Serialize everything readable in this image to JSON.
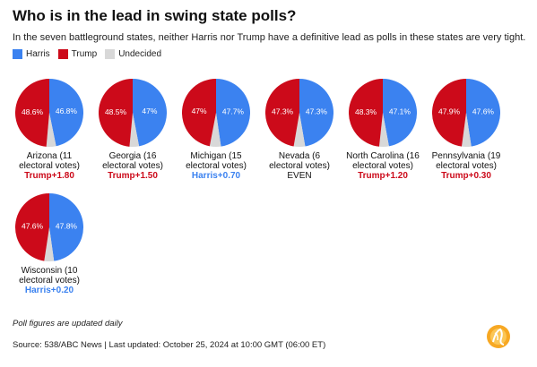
{
  "title": "Who is in the lead in swing state polls?",
  "subtitle": "In the seven battleground states, neither Harris nor Trump have a definitive lead as polls in these states are very tight.",
  "legend": [
    {
      "label": "Harris",
      "color": "#3b82f0"
    },
    {
      "label": "Trump",
      "color": "#cc0a1a"
    },
    {
      "label": "Undecided",
      "color": "#d8d8d8"
    }
  ],
  "colors": {
    "harris": "#3b82f0",
    "trump": "#cc0a1a",
    "undecided": "#d8d8d8",
    "harris_text": "#3b82f0",
    "trump_text": "#cc0a1a"
  },
  "chart_data": {
    "type": "pie",
    "series": [
      "Harris",
      "Trump",
      "Undecided"
    ],
    "states": [
      {
        "name_line1": "Arizona (11",
        "name_line2": "electoral votes)",
        "harris": 46.8,
        "trump": 48.6,
        "harris_label": "46.8%",
        "trump_label": "48.6%",
        "lead": "Trump+1.80",
        "leader": "trump"
      },
      {
        "name_line1": "Georgia (16",
        "name_line2": "electoral votes)",
        "harris": 47.0,
        "trump": 48.5,
        "harris_label": "47%",
        "trump_label": "48.5%",
        "lead": "Trump+1.50",
        "leader": "trump"
      },
      {
        "name_line1": "Michigan (15",
        "name_line2": "electoral votes)",
        "harris": 47.7,
        "trump": 47.0,
        "harris_label": "47.7%",
        "trump_label": "47%",
        "lead": "Harris+0.70",
        "leader": "harris"
      },
      {
        "name_line1": "Nevada (6",
        "name_line2": "electoral votes)",
        "harris": 47.3,
        "trump": 47.3,
        "harris_label": "47.3%",
        "trump_label": "47.3%",
        "lead": "EVEN",
        "leader": "even"
      },
      {
        "name_line1": "North Carolina (16",
        "name_line2": "electoral votes)",
        "harris": 47.1,
        "trump": 48.3,
        "harris_label": "47.1%",
        "trump_label": "48.3%",
        "lead": "Trump+1.20",
        "leader": "trump"
      },
      {
        "name_line1": "Pennsylvania (19",
        "name_line2": "electoral votes)",
        "harris": 47.6,
        "trump": 47.9,
        "harris_label": "47.6%",
        "trump_label": "47.9%",
        "lead": "Trump+0.30",
        "leader": "trump"
      },
      {
        "name_line1": "Wisconsin (10",
        "name_line2": "electoral votes)",
        "harris": 47.8,
        "trump": 47.6,
        "harris_label": "47.8%",
        "trump_label": "47.6%",
        "lead": "Harris+0.20",
        "leader": "harris"
      }
    ]
  },
  "note": "Poll figures are updated daily",
  "source": "Source: 538/ABC News | Last updated: October 25, 2024 at 10:00 GMT (06:00 ET)",
  "logo_icon": "al-jazeera-logo-icon"
}
